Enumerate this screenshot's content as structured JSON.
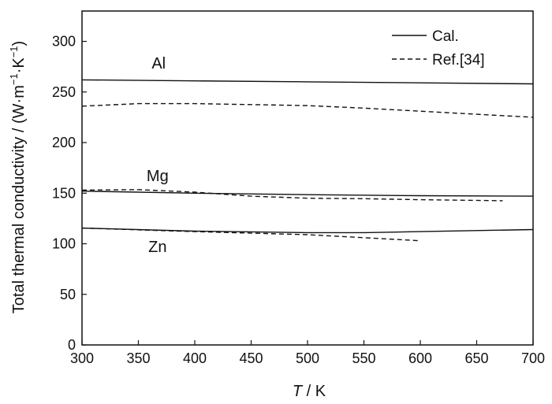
{
  "chart_data": {
    "type": "line",
    "title": "",
    "xlabel_italic": "T",
    "xlabel_rest": " / K",
    "ylabel": "Total thermal conductivity / (W·m",
    "ylabel_sup1": "−1",
    "ylabel_mid": "·K",
    "ylabel_sup2": "−1",
    "ylabel_end": ")",
    "xlim": [
      300,
      700
    ],
    "ylim": [
      0,
      330
    ],
    "xticks": [
      300,
      350,
      400,
      450,
      500,
      550,
      600,
      650,
      700
    ],
    "yticks": [
      0,
      50,
      100,
      150,
      200,
      250,
      300
    ],
    "legend": {
      "position": "top-right",
      "entries": [
        {
          "label": "Cal.",
          "style": "solid"
        },
        {
          "label": "Ref.[34]",
          "style": "dashed"
        }
      ]
    },
    "material_labels": [
      {
        "text": "Al",
        "x": 368,
        "y": 273
      },
      {
        "text": "Mg",
        "x": 367,
        "y": 162
      },
      {
        "text": "Zn",
        "x": 367,
        "y": 92
      }
    ],
    "series": [
      {
        "material": "Al",
        "source": "Cal.",
        "style": "solid",
        "x": [
          300,
          400,
          500,
          600,
          700
        ],
        "y": [
          262,
          261,
          260,
          259,
          258
        ]
      },
      {
        "material": "Al",
        "source": "Ref.[34]",
        "style": "dashed",
        "x": [
          300,
          350,
          400,
          450,
          500,
          550,
          600,
          650,
          700
        ],
        "y": [
          236,
          238.5,
          238.5,
          237.5,
          236.5,
          234,
          231,
          228,
          225
        ]
      },
      {
        "material": "Mg",
        "source": "Cal.",
        "style": "solid",
        "x": [
          300,
          400,
          500,
          600,
          700
        ],
        "y": [
          152,
          150,
          148.5,
          147.5,
          147
        ]
      },
      {
        "material": "Mg",
        "source": "Ref.[34]",
        "style": "dashed",
        "x": [
          300,
          350,
          400,
          450,
          500,
          550,
          600,
          673
        ],
        "y": [
          153,
          153.5,
          151,
          147,
          145,
          144.5,
          143.5,
          142.5
        ]
      },
      {
        "material": "Zn",
        "source": "Cal.",
        "style": "solid",
        "x": [
          300,
          400,
          500,
          550,
          600,
          700
        ],
        "y": [
          115.5,
          112.5,
          111,
          111,
          112,
          114
        ]
      },
      {
        "material": "Zn",
        "source": "Ref.[34]",
        "style": "dashed",
        "x": [
          300,
          400,
          500,
          550,
          600
        ],
        "y": [
          115.5,
          112,
          109,
          106,
          103
        ]
      }
    ]
  }
}
